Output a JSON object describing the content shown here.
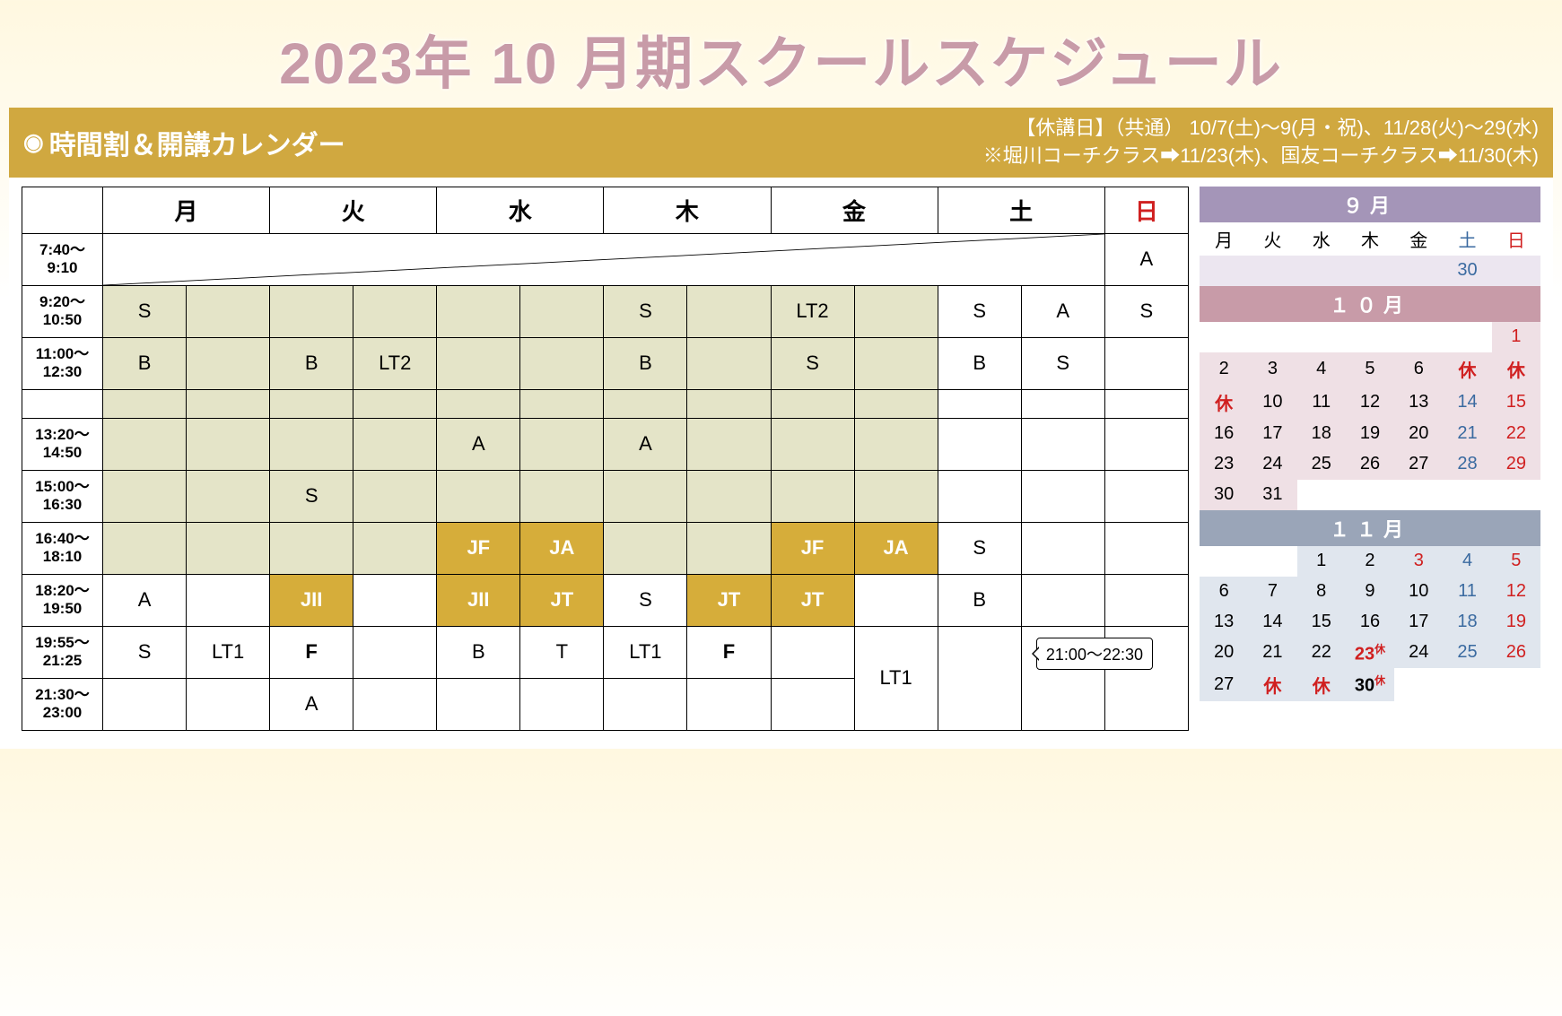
{
  "title": "2023年 10 月期スクールスケジュール",
  "subtitle_left": "時間割＆開講カレンダー",
  "holiday_line1": "【休講日】（共通） 10/7(土)～9(月・祝)、11/28(火)～29(水)",
  "holiday_line2": "※堀川コーチクラス➡11/23(木)、国友コーチクラス➡11/30(木)",
  "days": [
    "月",
    "火",
    "水",
    "木",
    "金",
    "土",
    "日"
  ],
  "times": [
    "7:40～\n9:10",
    "9:20～\n10:50",
    "11:00～\n12:30",
    "",
    "13:20～\n14:50",
    "15:00～\n16:30",
    "16:40～\n18:10",
    "18:20～\n19:50",
    "19:55～\n21:25",
    "21:30～\n23:00"
  ],
  "rows": {
    "r1_sun": "A",
    "r2": {
      "mon1": "S",
      "thu1": "S",
      "fri1": "LT2",
      "sat1": "S",
      "sat2": "A",
      "sun": "S"
    },
    "r3": {
      "mon1": "B",
      "tue1": "B",
      "tue2": "LT2",
      "thu1": "B",
      "fri1": "S",
      "sat1": "B",
      "sat2": "S"
    },
    "r5": {
      "wed1": "A",
      "thu1": "A"
    },
    "r6": {
      "tue1": "S"
    },
    "r7": {
      "wed1": "JF",
      "wed2": "JA",
      "fri1": "JF",
      "fri2": "JA",
      "sat1": "S"
    },
    "r8": {
      "mon1": "A",
      "tue1": "JII",
      "wed1": "JII",
      "wed2": "JT",
      "thu1": "S",
      "thu2": "JT",
      "fri1": "JT",
      "sat1": "B"
    },
    "r9": {
      "mon1": "S",
      "mon2": "LT1",
      "tue1": "F",
      "wed1": "B",
      "wed2": "T",
      "thu1": "LT1",
      "thu2": "F",
      "lt1": "LT1"
    },
    "r10": {
      "tue1": "A"
    }
  },
  "callout": "21:00～22:30",
  "minical": {
    "sep": {
      "title": "９月",
      "dow": [
        "月",
        "火",
        "水",
        "木",
        "金",
        "土",
        "日"
      ],
      "rows": [
        [
          "",
          "",
          "",
          "",
          "",
          "30",
          ""
        ]
      ]
    },
    "oct": {
      "title": "１０月",
      "rows": [
        [
          "",
          "",
          "",
          "",
          "",
          "",
          "1"
        ],
        [
          "2",
          "3",
          "4",
          "5",
          "6",
          "休",
          "休"
        ],
        [
          "休",
          "10",
          "11",
          "12",
          "13",
          "14",
          "15"
        ],
        [
          "16",
          "17",
          "18",
          "19",
          "20",
          "21",
          "22"
        ],
        [
          "23",
          "24",
          "25",
          "26",
          "27",
          "28",
          "29"
        ],
        [
          "30",
          "31",
          "",
          "",
          "",
          "",
          ""
        ]
      ]
    },
    "nov": {
      "title": "１１月",
      "rows": [
        [
          "",
          "",
          "1",
          "2",
          "3",
          "4",
          "5"
        ],
        [
          "6",
          "7",
          "8",
          "9",
          "10",
          "11",
          "12"
        ],
        [
          "13",
          "14",
          "15",
          "16",
          "17",
          "18",
          "19"
        ],
        [
          "20",
          "21",
          "22",
          "23休",
          "24",
          "25",
          "26"
        ],
        [
          "27",
          "休",
          "休",
          "30休",
          "",
          "",
          ""
        ]
      ]
    }
  },
  "colors": {
    "title": "#c89ba8",
    "gold": "#d0a840",
    "shade": "#e4e4c8",
    "cell_gold": "#d6ad3a",
    "sep": "#a495b8",
    "oct": "#c89ba8",
    "nov": "#9aa5b8"
  }
}
